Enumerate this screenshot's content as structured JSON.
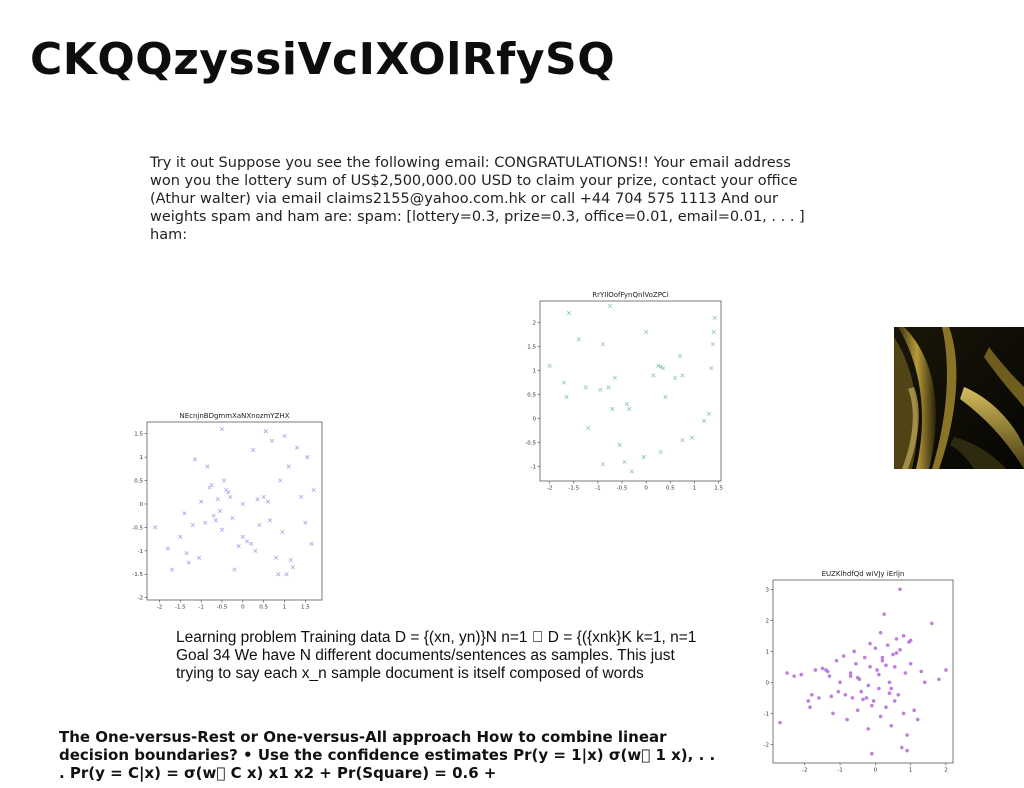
{
  "document": {
    "title": "CKQQzyssiVcIXOlRfySQ",
    "paragraph1": "Try it out Suppose you see the following email: CONGRATULATIONS!! Your email address won you the lottery sum of US$2,500,000.00 USD to claim your prize, contact your office (Athur walter) via email claims2155@yahoo.com.hk or call +44 704 575 1113 And our weights spam and ham are: spam: [lottery=0.3, prize=0.3, office=0.01, email=0.01, . . . ] ham:",
    "paragraph2": "Learning problem Training data D = {(xn, yn)}N n=1 \u0000 D = {({xnk}K k=1, n=1 Goal 34 We have N different documents/sentences as samples. This just trying to say each x_n sample document is itself composed of words",
    "paragraph3": "The One-versus-Rest or One-versus-All approach How to combine linear decision boundaries? • Use the confidence estimates Pr(y = 1|x) σ(w\u0000 1 x), . . . Pr(y = C|x) = σ(w\u0000 C x) x1 x2 + Pr(Square) = 0.6 +"
  },
  "chart_data": [
    {
      "type": "scatter",
      "title": "NEcnjnBDgmmXaNXnozmYZHX",
      "marker": "x",
      "color": "#a6a6e8",
      "xlim": [
        -2.3,
        1.9
      ],
      "ylim": [
        -2.05,
        1.75
      ],
      "xticks": [
        -2.0,
        -1.5,
        -1.0,
        -0.5,
        0.0,
        0.5,
        1.0,
        1.5
      ],
      "yticks": [
        -2.0,
        -1.5,
        -1.0,
        -0.5,
        0.0,
        0.5,
        1.0,
        1.5
      ],
      "x": [
        -2.1,
        -1.8,
        -1.7,
        -1.5,
        -1.4,
        -1.3,
        -1.2,
        -1.15,
        -1.05,
        -1.0,
        -0.9,
        -0.85,
        -0.8,
        -0.75,
        -0.7,
        -0.65,
        -0.6,
        -0.5,
        -0.5,
        -0.45,
        -0.4,
        -0.35,
        -0.3,
        -0.2,
        -0.1,
        0.0,
        0.0,
        0.1,
        0.2,
        0.25,
        0.3,
        0.4,
        0.5,
        0.55,
        0.6,
        0.65,
        0.7,
        0.8,
        0.85,
        0.9,
        1.0,
        1.05,
        1.1,
        1.15,
        1.2,
        1.3,
        1.4,
        1.5,
        1.55,
        1.65,
        1.7,
        -0.55,
        0.35,
        -1.35,
        0.95,
        -0.25
      ],
      "y": [
        -0.5,
        -0.95,
        -1.4,
        -0.7,
        -0.2,
        -1.25,
        -0.45,
        0.95,
        -1.15,
        0.05,
        -0.4,
        0.8,
        0.35,
        0.4,
        -0.25,
        -0.35,
        0.1,
        -0.55,
        1.6,
        0.5,
        0.3,
        0.25,
        0.15,
        -1.4,
        -0.9,
        0.0,
        -0.7,
        -0.8,
        -0.85,
        1.15,
        -1.0,
        -0.45,
        0.15,
        1.55,
        0.05,
        -0.35,
        1.35,
        -1.15,
        -1.5,
        0.5,
        1.45,
        -1.5,
        0.8,
        -1.2,
        -1.35,
        1.2,
        0.15,
        -0.4,
        1.0,
        -0.85,
        0.3,
        -0.15,
        0.1,
        -1.05,
        -0.6,
        -0.3
      ]
    },
    {
      "type": "scatter",
      "title": "RrYIlOofFynQnlVoZPCi",
      "marker": "x",
      "color": "#8cc7b7",
      "xlim": [
        -2.2,
        1.55
      ],
      "ylim": [
        -1.3,
        2.45
      ],
      "xticks": [
        -2.0,
        -1.5,
        -1.0,
        -0.5,
        0.0,
        0.5,
        1.0,
        1.5
      ],
      "yticks": [
        -1.0,
        -0.5,
        0.0,
        0.5,
        1.0,
        1.5,
        2.0
      ],
      "x": [
        -2.0,
        -1.7,
        -1.65,
        -1.6,
        -1.4,
        -1.25,
        -1.2,
        -0.95,
        -0.9,
        -0.9,
        -0.75,
        -0.7,
        -0.65,
        -0.55,
        -0.45,
        -0.4,
        -0.35,
        -0.3,
        -0.05,
        0.0,
        0.15,
        0.25,
        0.3,
        0.35,
        0.4,
        0.6,
        0.7,
        0.75,
        0.75,
        0.95,
        1.2,
        1.3,
        1.35,
        1.38,
        1.4,
        1.42,
        -0.78,
        0.3
      ],
      "y": [
        1.1,
        0.75,
        0.45,
        2.2,
        1.65,
        0.65,
        -0.2,
        0.6,
        1.55,
        -0.95,
        2.35,
        0.2,
        0.85,
        -0.55,
        -0.9,
        0.3,
        0.2,
        -1.1,
        -0.8,
        1.8,
        0.9,
        1.1,
        -0.7,
        1.05,
        0.45,
        0.85,
        1.3,
        0.9,
        -0.45,
        -0.4,
        -0.05,
        0.1,
        1.05,
        1.55,
        1.8,
        2.1,
        0.65,
        1.08
      ]
    },
    {
      "type": "scatter",
      "title": "EUZKlhdfQd wiVJy iErljn",
      "marker": "o",
      "color": "#b06ad8",
      "xlim": [
        -2.9,
        2.2
      ],
      "ylim": [
        -2.6,
        3.3
      ],
      "xticks": [
        -2,
        -1,
        0,
        1,
        2
      ],
      "yticks": [
        -2,
        -1,
        0,
        1,
        2,
        3
      ],
      "x": [
        -2.7,
        -2.5,
        -2.3,
        -2.1,
        -1.9,
        -1.85,
        -1.8,
        -1.7,
        -1.6,
        -1.5,
        -1.4,
        -1.35,
        -1.3,
        -1.2,
        -1.1,
        -1.05,
        -1.0,
        -0.9,
        -0.85,
        -0.8,
        -0.7,
        -0.65,
        -0.6,
        -0.55,
        -0.5,
        -0.45,
        -0.4,
        -0.3,
        -0.25,
        -0.2,
        -0.15,
        -0.1,
        -0.05,
        0.0,
        0.05,
        0.1,
        0.15,
        0.2,
        0.25,
        0.3,
        0.35,
        0.4,
        0.45,
        0.5,
        0.55,
        0.6,
        0.65,
        0.7,
        0.75,
        0.8,
        0.85,
        0.9,
        0.95,
        1.0,
        1.1,
        1.2,
        1.4,
        1.6,
        1.8,
        2.0,
        -0.2,
        0.1,
        0.4,
        0.7,
        0.9,
        -0.5,
        -0.1,
        0.3,
        0.6,
        1.0,
        -0.35,
        0.2,
        0.8,
        0.45,
        -0.15,
        1.3,
        -0.7,
        0.55,
        0.15,
        -1.25
      ],
      "y": [
        -1.3,
        0.3,
        0.2,
        0.25,
        -0.6,
        -0.8,
        -0.4,
        0.4,
        -0.5,
        0.45,
        0.4,
        0.35,
        0.2,
        -1.0,
        0.7,
        -0.3,
        0.0,
        0.85,
        -0.4,
        -1.2,
        0.3,
        -0.5,
        1.0,
        0.6,
        -0.9,
        0.1,
        -0.3,
        0.8,
        -0.5,
        -1.5,
        0.5,
        -2.3,
        -0.6,
        1.1,
        0.4,
        -0.2,
        -1.1,
        0.7,
        2.2,
        -0.8,
        1.2,
        0.0,
        -1.4,
        0.9,
        0.5,
        1.4,
        -0.4,
        3.0,
        -2.1,
        1.5,
        0.3,
        -1.7,
        1.3,
        0.6,
        -0.9,
        -1.2,
        0.0,
        1.9,
        0.1,
        0.4,
        -0.1,
        0.25,
        -0.35,
        1.05,
        -2.2,
        0.15,
        -0.75,
        0.55,
        0.95,
        1.35,
        -0.55,
        0.8,
        -1.0,
        -0.2,
        1.25,
        0.35,
        0.2,
        -0.6,
        1.6,
        -0.45
      ]
    }
  ]
}
